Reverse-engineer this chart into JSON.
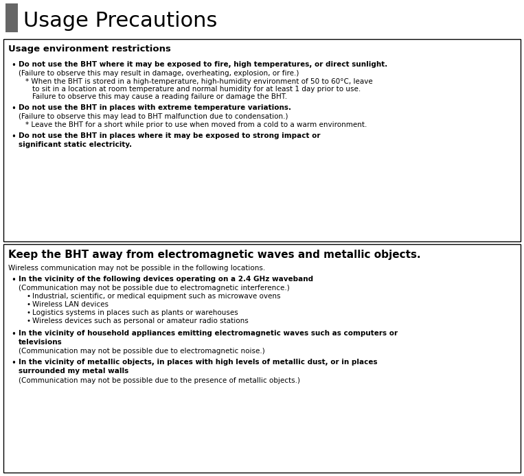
{
  "title": "Usage Precautions",
  "title_fontsize": 22,
  "title_color": "#000000",
  "header_square_color": "#666666",
  "bg_color": "#ffffff",
  "section1_header": "Usage environment restrictions",
  "section1_header_fontsize": 9.5,
  "section2_header": "Keep the BHT away from electromagnetic waves and metallic objects.",
  "section2_header_fontsize": 11,
  "section2_intro": "Wireless communication may not be possible in the following locations.",
  "font_size_body": 7.5,
  "font_size_note": 7.5,
  "font_size_sub": 7.5
}
